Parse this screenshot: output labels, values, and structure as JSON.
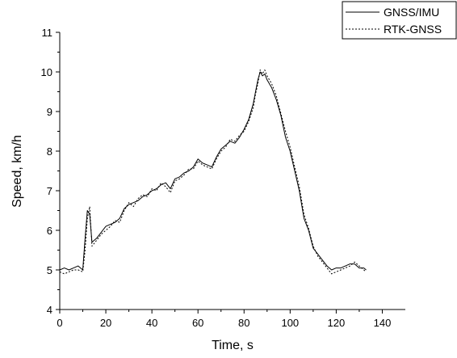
{
  "chart_data": {
    "type": "line",
    "title": "",
    "xlabel": "Time, s",
    "ylabel": "Speed, km/h",
    "xlim": [
      0,
      150
    ],
    "ylim": [
      4,
      11
    ],
    "x_ticks": [
      0,
      20,
      40,
      60,
      80,
      100,
      120,
      140
    ],
    "y_ticks": [
      4,
      5,
      6,
      7,
      8,
      9,
      10,
      11
    ],
    "grid": false,
    "legend_position": "top-right",
    "series": [
      {
        "name": "GNSS/IMU",
        "style": "solid",
        "color": "#000000",
        "x": [
          0,
          2,
          4,
          6,
          8,
          10,
          11,
          12,
          13,
          14,
          16,
          18,
          20,
          22,
          24,
          26,
          28,
          30,
          32,
          34,
          36,
          38,
          40,
          42,
          44,
          46,
          48,
          50,
          52,
          54,
          56,
          58,
          60,
          62,
          64,
          66,
          68,
          70,
          72,
          74,
          76,
          78,
          80,
          82,
          84,
          85,
          86,
          87,
          88,
          89,
          90,
          92,
          94,
          96,
          98,
          100,
          102,
          104,
          106,
          108,
          110,
          112,
          114,
          116,
          118,
          120,
          122,
          124,
          126,
          128,
          130,
          132,
          133
        ],
        "y": [
          5.0,
          5.05,
          5.0,
          5.05,
          5.1,
          5.0,
          5.8,
          6.5,
          6.4,
          5.7,
          5.8,
          5.95,
          6.1,
          6.15,
          6.2,
          6.3,
          6.55,
          6.65,
          6.7,
          6.75,
          6.85,
          6.9,
          7.0,
          7.05,
          7.15,
          7.2,
          7.05,
          7.3,
          7.35,
          7.45,
          7.5,
          7.6,
          7.8,
          7.7,
          7.65,
          7.6,
          7.85,
          8.05,
          8.15,
          8.25,
          8.2,
          8.35,
          8.55,
          8.8,
          9.2,
          9.5,
          9.8,
          10.0,
          9.9,
          9.95,
          9.8,
          9.6,
          9.3,
          8.9,
          8.35,
          8.0,
          7.5,
          7.0,
          6.3,
          6.0,
          5.55,
          5.4,
          5.25,
          5.1,
          5.0,
          5.05,
          5.05,
          5.1,
          5.15,
          5.15,
          5.05,
          5.05,
          5.0
        ]
      },
      {
        "name": "RTK-GNSS",
        "style": "dashed",
        "color": "#000000",
        "x": [
          0,
          2,
          4,
          6,
          8,
          10,
          11,
          12,
          13,
          14,
          16,
          18,
          20,
          22,
          24,
          26,
          28,
          30,
          32,
          34,
          36,
          38,
          40,
          42,
          44,
          46,
          48,
          50,
          52,
          54,
          56,
          58,
          60,
          62,
          64,
          66,
          68,
          70,
          72,
          74,
          76,
          78,
          80,
          82,
          84,
          85,
          86,
          87,
          88,
          89,
          90,
          92,
          94,
          96,
          98,
          100,
          102,
          104,
          106,
          108,
          110,
          112,
          114,
          116,
          118,
          120,
          122,
          124,
          126,
          128,
          130,
          132,
          133
        ],
        "y": [
          4.95,
          4.9,
          4.95,
          5.0,
          5.0,
          4.95,
          5.5,
          6.3,
          6.6,
          5.6,
          5.75,
          5.9,
          6.0,
          6.1,
          6.25,
          6.2,
          6.5,
          6.7,
          6.6,
          6.8,
          6.9,
          6.85,
          7.05,
          7.0,
          7.2,
          7.1,
          6.95,
          7.25,
          7.3,
          7.4,
          7.55,
          7.55,
          7.75,
          7.65,
          7.6,
          7.55,
          7.8,
          8.0,
          8.1,
          8.3,
          8.25,
          8.4,
          8.5,
          8.75,
          9.1,
          9.45,
          9.7,
          10.05,
          9.95,
          10.05,
          9.9,
          9.7,
          9.4,
          8.95,
          8.5,
          8.1,
          7.6,
          7.1,
          6.4,
          6.05,
          5.6,
          5.35,
          5.2,
          5.05,
          4.9,
          4.95,
          5.0,
          5.05,
          5.1,
          5.2,
          5.1,
          5.0,
          4.95
        ]
      }
    ]
  }
}
